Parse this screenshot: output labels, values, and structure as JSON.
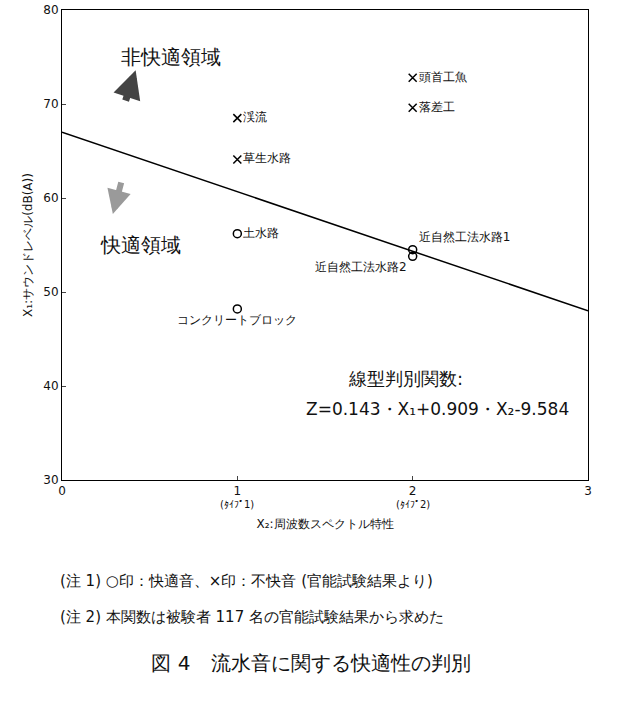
{
  "chart_data": {
    "type": "scatter",
    "x_label": "X₂:周波数スペクトル特性",
    "y_label": "X₁:サウンドレベル(dB(A))",
    "xlim": [
      0,
      3
    ],
    "ylim": [
      30,
      80
    ],
    "xticks": [
      0,
      1,
      2,
      3
    ],
    "yticks": [
      30,
      40,
      50,
      60,
      70,
      80
    ],
    "grid": false,
    "series": [
      {
        "type": "scatter",
        "marker": "circle-open",
        "color": "#000000",
        "x": [
          1,
          1,
          2,
          2
        ],
        "values": [
          56.2,
          48.2,
          54.5,
          53.8
        ],
        "point_labels": [
          "土水路",
          "コンクリートブロック",
          "近自然工法水路1",
          "近自然工法水路2"
        ]
      },
      {
        "type": "scatter",
        "marker": "x",
        "color": "#000000",
        "x": [
          1,
          1,
          2,
          2
        ],
        "values": [
          68.5,
          64.1,
          72.8,
          69.6
        ],
        "point_labels": [
          "渓流",
          "草生水路",
          "頭首工魚",
          "落差工"
        ]
      },
      {
        "type": "line",
        "line_style": "solid",
        "color": "#000000",
        "x": [
          0,
          3
        ],
        "values": [
          67.0,
          48.0
        ]
      }
    ],
    "annotations": [
      {
        "text": "非快適領域"
      },
      {
        "text": "快適領域"
      },
      {
        "text": "線型判別関数:"
      },
      {
        "text": "Z=0.143・X₁+0.909・X₂-9.584"
      },
      {
        "text": "(ﾀｲﾌﾟ1)"
      },
      {
        "text": "(ﾀｲﾌﾟ2)"
      }
    ],
    "notes": [
      "(注 1) ○印：快適音、×印：不快音 (官能試験結果より)",
      "(注 2) 本関数は被験者 117 名の官能試験結果から求めた"
    ],
    "caption": "図 4　流水音に関する快適性の判別"
  }
}
